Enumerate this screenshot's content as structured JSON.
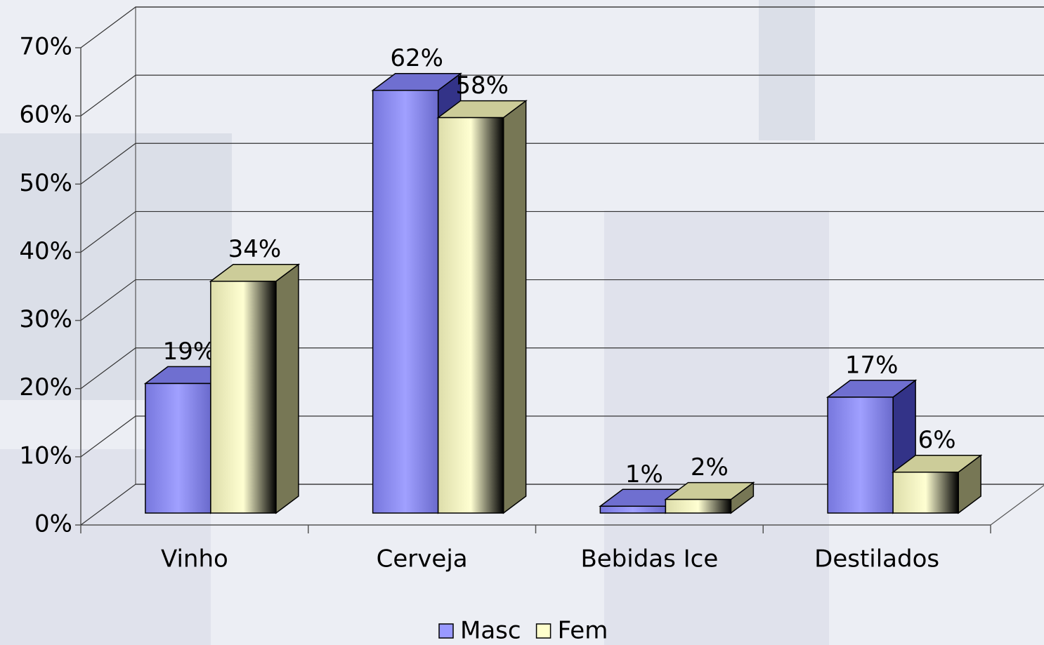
{
  "chart_data": {
    "type": "bar3d",
    "categories": [
      "Vinho",
      "Cerveja",
      "Bebidas Ice",
      "Destilados"
    ],
    "series": [
      {
        "name": "Masc",
        "color": "#9999ff",
        "values": [
          19,
          62,
          1,
          17
        ],
        "value_labels": [
          "19%",
          "62%",
          "1%",
          "17%"
        ]
      },
      {
        "name": "Fem",
        "color": "#ffffcc",
        "values": [
          34,
          58,
          2,
          6
        ],
        "value_labels": [
          "34%",
          "58%",
          "2%",
          "6%"
        ]
      }
    ],
    "ylim": [
      0,
      70
    ],
    "yticks": [
      {
        "value": 0,
        "label": "0%"
      },
      {
        "value": 10,
        "label": "10%"
      },
      {
        "value": 20,
        "label": "20%"
      },
      {
        "value": 30,
        "label": "30%"
      },
      {
        "value": 40,
        "label": "40%"
      },
      {
        "value": 50,
        "label": "50%"
      },
      {
        "value": 60,
        "label": "60%"
      },
      {
        "value": 70,
        "label": "70%"
      }
    ],
    "grid": true,
    "legend": "bottom"
  }
}
